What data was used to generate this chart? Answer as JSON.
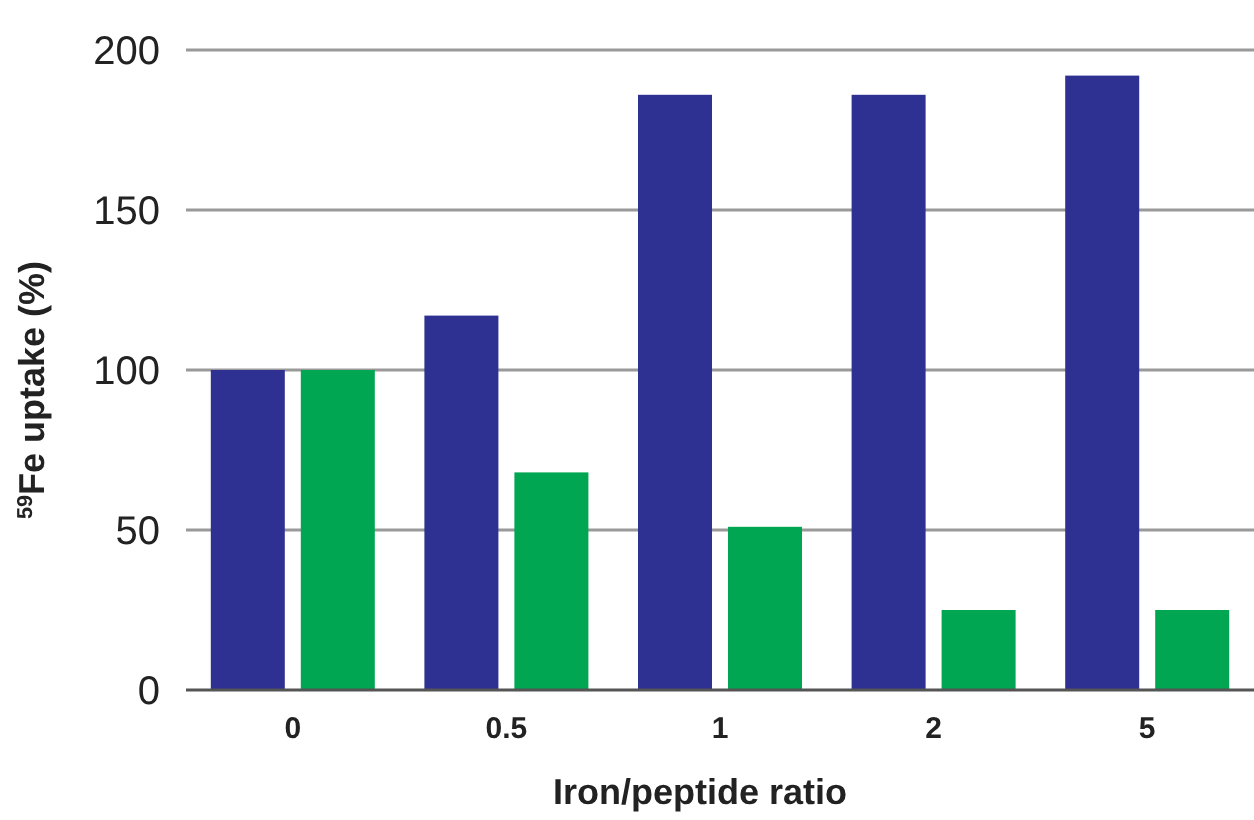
{
  "chart_data": {
    "type": "bar",
    "xlabel": "Iron/peptide ratio",
    "ylabel": "$^{59}$Fe uptake (%)",
    "categories": [
      "0",
      "0.5",
      "1",
      "2",
      "5"
    ],
    "series": [
      {
        "color": "#2e3192",
        "values": [
          100,
          117,
          186,
          186,
          192
        ]
      },
      {
        "color": "#00a651",
        "values": [
          100,
          68,
          51,
          25,
          25
        ]
      }
    ],
    "ylim": [
      0,
      200
    ],
    "yticks": [
      0,
      50,
      100,
      150,
      200
    ],
    "grid": "y"
  }
}
